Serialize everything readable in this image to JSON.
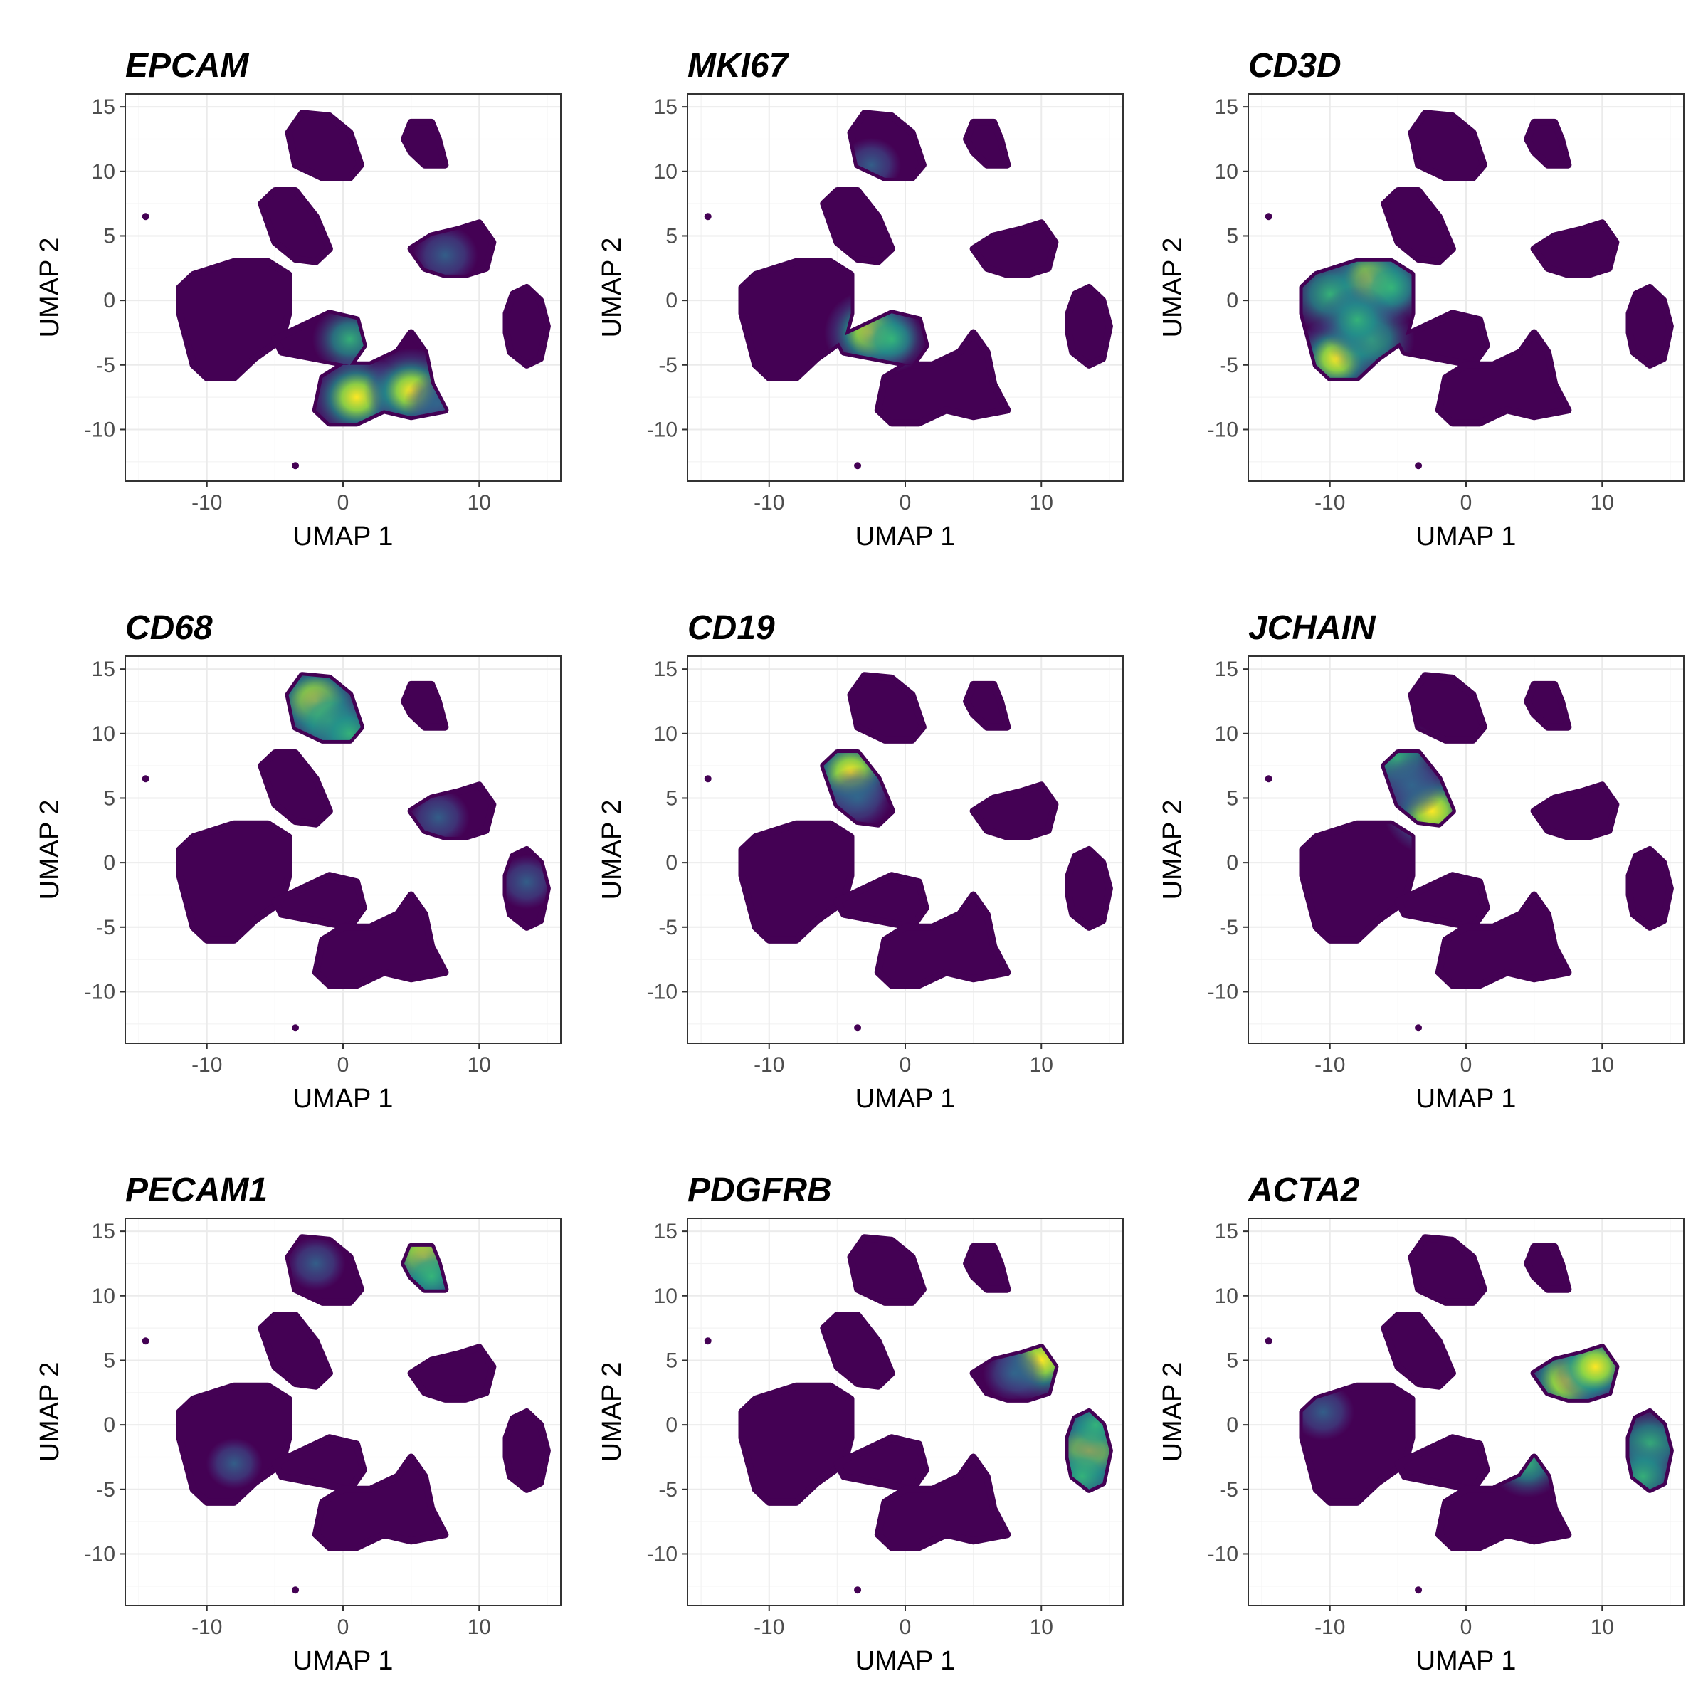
{
  "chart_data": [
    {
      "type": "scatter",
      "title": "EPCAM",
      "xlabel": "UMAP 1",
      "ylabel": "UMAP 2",
      "xlim": [
        -16,
        16
      ],
      "ylim": [
        -14,
        16
      ],
      "xticks": [
        -10,
        0,
        10
      ],
      "yticks": [
        15,
        10,
        5,
        0,
        -5,
        -10
      ],
      "hotspots": [
        {
          "x": 0.5,
          "y": -3.0,
          "level": 0.55
        },
        {
          "x": 1.0,
          "y": -7.5,
          "level": 0.9
        },
        {
          "x": 5.0,
          "y": -7.0,
          "level": 0.85
        },
        {
          "x": 7.0,
          "y": -8.0,
          "level": 0.45
        },
        {
          "x": 7.5,
          "y": 3.5,
          "level": 0.4
        }
      ]
    },
    {
      "type": "scatter",
      "title": "MKI67",
      "xlabel": "UMAP 1",
      "ylabel": "UMAP 2",
      "xlim": [
        -16,
        16
      ],
      "ylim": [
        -14,
        16
      ],
      "xticks": [
        -10,
        0,
        10
      ],
      "yticks": [
        15,
        10,
        5,
        0,
        -5,
        -10
      ],
      "hotspots": [
        {
          "x": -2.5,
          "y": -2.5,
          "level": 0.85
        },
        {
          "x": -1.0,
          "y": -3.0,
          "level": 0.5
        },
        {
          "x": -2.5,
          "y": 10.5,
          "level": 0.3
        }
      ]
    },
    {
      "type": "scatter",
      "title": "CD3D",
      "xlabel": "UMAP 1",
      "ylabel": "UMAP 2",
      "xlim": [
        -16,
        16
      ],
      "ylim": [
        -14,
        16
      ],
      "xticks": [
        -10,
        0,
        10
      ],
      "yticks": [
        15,
        10,
        5,
        0,
        -5,
        -10
      ],
      "hotspots": [
        {
          "x": -7.0,
          "y": 1.5,
          "level": 0.9
        },
        {
          "x": -10.0,
          "y": 0.5,
          "level": 0.75
        },
        {
          "x": -9.5,
          "y": -4.5,
          "level": 0.8
        },
        {
          "x": -7.0,
          "y": -3.0,
          "level": 0.75
        },
        {
          "x": -5.5,
          "y": 1.0,
          "level": 0.65
        },
        {
          "x": -8.0,
          "y": -1.5,
          "level": 0.55
        }
      ]
    },
    {
      "type": "scatter",
      "title": "CD68",
      "xlabel": "UMAP 1",
      "ylabel": "UMAP 2",
      "xlim": [
        -16,
        16
      ],
      "ylim": [
        -14,
        16
      ],
      "xticks": [
        -10,
        0,
        10
      ],
      "yticks": [
        15,
        10,
        5,
        0,
        -5,
        -10
      ],
      "hotspots": [
        {
          "x": -2.0,
          "y": 12.5,
          "level": 0.95
        },
        {
          "x": -1.0,
          "y": 11.0,
          "level": 0.75
        },
        {
          "x": 0.5,
          "y": 10.0,
          "level": 0.55
        },
        {
          "x": 7.0,
          "y": 3.5,
          "level": 0.35
        },
        {
          "x": 13.5,
          "y": -1.5,
          "level": 0.3
        }
      ]
    },
    {
      "type": "scatter",
      "title": "CD19",
      "xlabel": "UMAP 1",
      "ylabel": "UMAP 2",
      "xlim": [
        -16,
        16
      ],
      "ylim": [
        -14,
        16
      ],
      "xticks": [
        -10,
        0,
        10
      ],
      "yticks": [
        15,
        10,
        5,
        0,
        -5,
        -10
      ],
      "hotspots": [
        {
          "x": -4.0,
          "y": 7.0,
          "level": 0.85
        },
        {
          "x": -3.5,
          "y": 5.0,
          "level": 0.45
        }
      ]
    },
    {
      "type": "scatter",
      "title": "JCHAIN",
      "xlabel": "UMAP 1",
      "ylabel": "UMAP 2",
      "xlim": [
        -16,
        16
      ],
      "ylim": [
        -14,
        16
      ],
      "xticks": [
        -10,
        0,
        10
      ],
      "yticks": [
        15,
        10,
        5,
        0,
        -5,
        -10
      ],
      "hotspots": [
        {
          "x": -2.5,
          "y": 4.0,
          "level": 0.9
        },
        {
          "x": -5.0,
          "y": 8.0,
          "level": 0.75
        },
        {
          "x": -4.0,
          "y": 6.0,
          "level": 0.45
        }
      ]
    },
    {
      "type": "scatter",
      "title": "PECAM1",
      "xlabel": "UMAP 1",
      "ylabel": "UMAP 2",
      "xlim": [
        -16,
        16
      ],
      "ylim": [
        -14,
        16
      ],
      "xticks": [
        -10,
        0,
        10
      ],
      "yticks": [
        15,
        10,
        5,
        0,
        -5,
        -10
      ],
      "hotspots": [
        {
          "x": 6.0,
          "y": 13.0,
          "level": 0.9
        },
        {
          "x": 6.5,
          "y": 11.5,
          "level": 0.5
        },
        {
          "x": -2.0,
          "y": 12.5,
          "level": 0.3
        },
        {
          "x": -8.0,
          "y": -3.0,
          "level": 0.25
        }
      ]
    },
    {
      "type": "scatter",
      "title": "PDGFRB",
      "xlabel": "UMAP 1",
      "ylabel": "UMAP 2",
      "xlim": [
        -16,
        16
      ],
      "ylim": [
        -14,
        16
      ],
      "xticks": [
        -10,
        0,
        10
      ],
      "yticks": [
        15,
        10,
        5,
        0,
        -5,
        -10
      ],
      "hotspots": [
        {
          "x": 10.0,
          "y": 5.0,
          "level": 0.85
        },
        {
          "x": 13.5,
          "y": -2.0,
          "level": 0.95
        },
        {
          "x": 13.0,
          "y": -4.0,
          "level": 0.65
        },
        {
          "x": 14.0,
          "y": 0.0,
          "level": 0.55
        },
        {
          "x": 8.0,
          "y": 4.0,
          "level": 0.35
        }
      ]
    },
    {
      "type": "scatter",
      "title": "ACTA2",
      "xlabel": "UMAP 1",
      "ylabel": "UMAP 2",
      "xlim": [
        -16,
        16
      ],
      "ylim": [
        -14,
        16
      ],
      "xticks": [
        -10,
        0,
        10
      ],
      "yticks": [
        15,
        10,
        5,
        0,
        -5,
        -10
      ],
      "hotspots": [
        {
          "x": 7.5,
          "y": 3.5,
          "level": 0.95
        },
        {
          "x": 9.5,
          "y": 4.5,
          "level": 0.8
        },
        {
          "x": 13.5,
          "y": -1.5,
          "level": 0.75
        },
        {
          "x": 13.0,
          "y": -4.0,
          "level": 0.6
        },
        {
          "x": 4.5,
          "y": -3.0,
          "level": 0.55
        },
        {
          "x": -10.5,
          "y": 1.0,
          "level": 0.35
        }
      ]
    }
  ]
}
